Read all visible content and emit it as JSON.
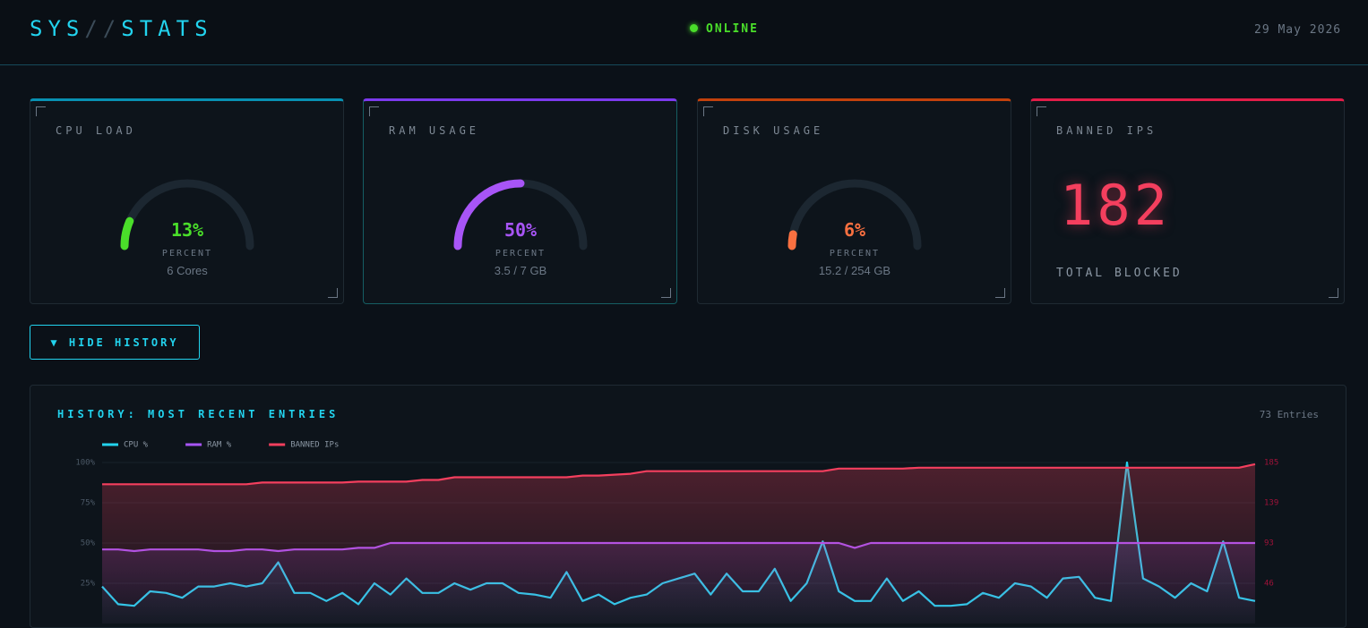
{
  "header": {
    "title_parts": [
      "SYS",
      "//",
      "STATS"
    ],
    "status": "ONLINE",
    "date": "29 May 2026"
  },
  "cards": [
    {
      "label": "CPU LOAD",
      "value": 13,
      "value_label": "13%",
      "unit": "PERCENT",
      "detail": "6 Cores",
      "color": "#4ade2a"
    },
    {
      "label": "RAM USAGE",
      "value": 50,
      "value_label": "50%",
      "unit": "PERCENT",
      "detail": "3.5 / 7 GB",
      "color": "#a855f7"
    },
    {
      "label": "DISK USAGE",
      "value": 6,
      "value_label": "6%",
      "unit": "PERCENT",
      "detail": "15.2 / 254 GB",
      "color": "#f97040"
    }
  ],
  "banned": {
    "label": "BANNED IPS",
    "value": 182,
    "footer": "TOTAL BLOCKED"
  },
  "button": {
    "label": "▼ HIDE HISTORY"
  },
  "history": {
    "title": "HISTORY: MOST RECENT ENTRIES",
    "entries": "73 Entries",
    "chart_data": {
      "type": "line",
      "grid": true,
      "ylim": [
        0,
        100
      ],
      "yticks": [
        {
          "value": 25,
          "label": "25%"
        },
        {
          "value": 50,
          "label": "50%"
        },
        {
          "value": 75,
          "label": "75%"
        },
        {
          "value": 100,
          "label": "100%"
        }
      ],
      "y2lim": [
        0,
        185
      ],
      "y2ticks": [
        {
          "value": 46.25,
          "label": "46"
        },
        {
          "value": 92.5,
          "label": "93"
        },
        {
          "value": 138.75,
          "label": "139"
        },
        185
      ],
      "series": [
        {
          "name": "CPU %",
          "color": "#22d3ee",
          "values": [
            23,
            12,
            11,
            20,
            19,
            16,
            23,
            23,
            25,
            23,
            25,
            38,
            19,
            19,
            14,
            19,
            12,
            25,
            18,
            28,
            19,
            19,
            25,
            21,
            25,
            25,
            19,
            18,
            16,
            32,
            14,
            18,
            12,
            16,
            18,
            25,
            28,
            31,
            18,
            31,
            20,
            20,
            34,
            14,
            25,
            51,
            20,
            14,
            14,
            28,
            14,
            20,
            11,
            11,
            12,
            19,
            16,
            25,
            23,
            16,
            28,
            29,
            16,
            14,
            100,
            28,
            23,
            16,
            25,
            20,
            51,
            16,
            14
          ]
        },
        {
          "name": "RAM %",
          "color": "#a855f7",
          "values": [
            46,
            46,
            45,
            46,
            46,
            46,
            46,
            45,
            45,
            46,
            46,
            45,
            46,
            46,
            46,
            46,
            47,
            47,
            50,
            50,
            50,
            50,
            50,
            50,
            50,
            50,
            50,
            50,
            50,
            50,
            50,
            50,
            50,
            50,
            50,
            50,
            50,
            50,
            50,
            50,
            50,
            50,
            50,
            50,
            50,
            50,
            50,
            47,
            50,
            50,
            50,
            50,
            50,
            50,
            50,
            50,
            50,
            50,
            50,
            50,
            50,
            50,
            50,
            50,
            50,
            50,
            50,
            50,
            50,
            50,
            50,
            50,
            50
          ]
        },
        {
          "name": "BANNED IPs",
          "color": "#f43f5e",
          "axis": "y2",
          "values": [
            160,
            160,
            160,
            160,
            160,
            160,
            160,
            160,
            160,
            160,
            162,
            162,
            162,
            162,
            162,
            162,
            163,
            163,
            163,
            163,
            165,
            165,
            168,
            168,
            168,
            168,
            168,
            168,
            168,
            168,
            170,
            170,
            171,
            172,
            175,
            175,
            175,
            175,
            175,
            175,
            175,
            175,
            175,
            175,
            175,
            175,
            178,
            178,
            178,
            178,
            178,
            179,
            179,
            179,
            179,
            179,
            179,
            179,
            179,
            179,
            179,
            179,
            179,
            179,
            179,
            179,
            179,
            179,
            179,
            179,
            179,
            179,
            183
          ]
        }
      ]
    }
  }
}
